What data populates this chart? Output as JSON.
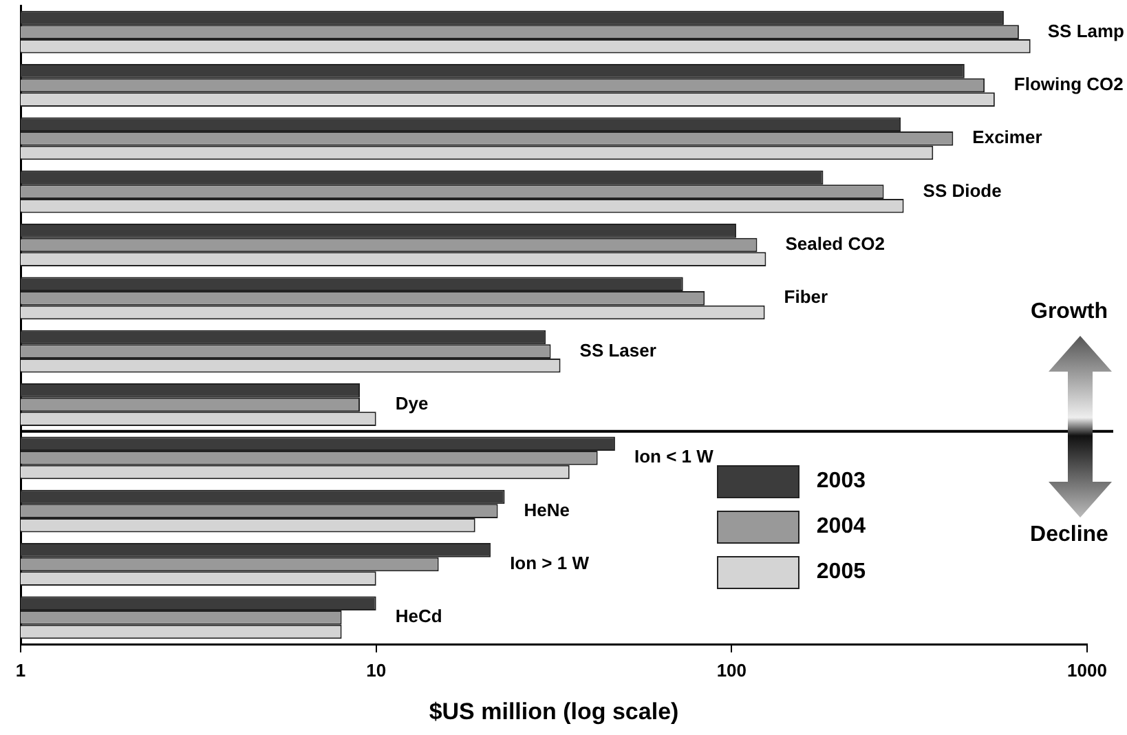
{
  "chart_data": {
    "type": "bar",
    "orientation": "horizontal",
    "log": "x",
    "xlabel": "$US million (log scale)",
    "categories": [
      "SS Lamp",
      "Flowing CO2",
      "Excimer",
      "SS Diode",
      "Sealed CO2",
      "Fiber",
      "SS Laser",
      "Dye",
      "Ion < 1 W",
      "HeNe",
      "Ion > 1 W",
      "HeCd"
    ],
    "series": [
      {
        "name": "2003",
        "color": "#3c3c3c",
        "values": [
          583,
          452,
          299,
          181,
          103,
          73,
          30,
          9,
          47,
          23,
          21,
          10
        ]
      },
      {
        "name": "2004",
        "color": "#999999",
        "values": [
          643,
          515,
          420,
          268,
          118,
          84,
          31,
          9,
          42,
          22,
          15,
          8
        ]
      },
      {
        "name": "2005",
        "color": "#d4d4d4",
        "values": [
          693,
          550,
          369,
          305,
          125,
          124,
          33,
          10,
          35,
          19,
          10,
          8
        ]
      }
    ],
    "xlim": [
      1,
      1000
    ],
    "xticks": [
      1,
      10,
      100,
      1000
    ],
    "grid": false,
    "legend": "bottom right",
    "tick_labels": "x",
    "annotations": [
      "Growth",
      "Decline"
    ]
  }
}
